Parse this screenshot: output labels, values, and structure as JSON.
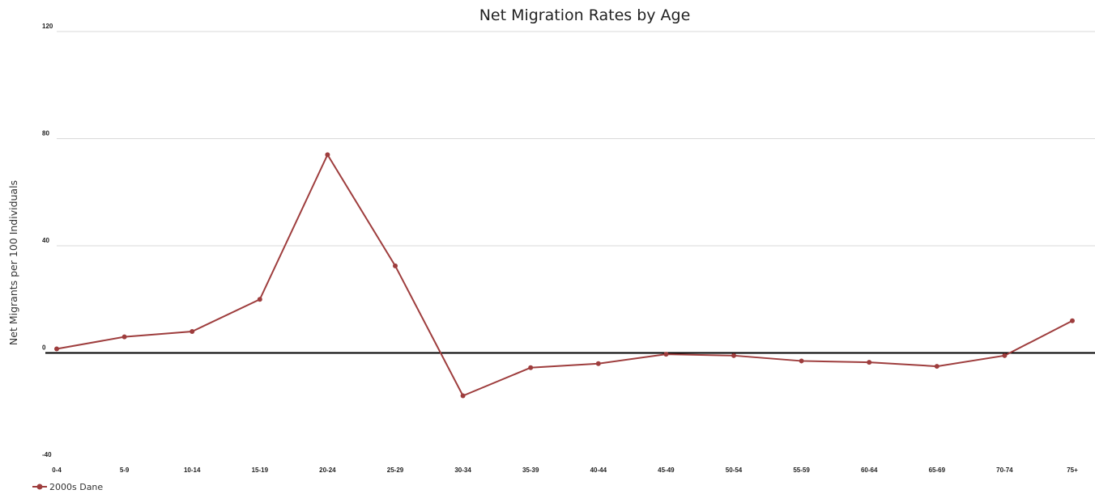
{
  "chart_data": {
    "type": "line",
    "title": "Net Migration Rates by Age",
    "ylabel": "Net Migrants per 100 Individuals",
    "xlabel": "",
    "ylim": [
      -40,
      120
    ],
    "yticks": [
      120,
      80,
      40,
      0,
      -40
    ],
    "grid": true,
    "legend_position": "bottom-left",
    "categories": [
      "0-4",
      "5-9",
      "10-14",
      "15-19",
      "20-24",
      "25-29",
      "30-34",
      "35-39",
      "40-44",
      "45-49",
      "50-54",
      "55-59",
      "60-64",
      "65-69",
      "70-74",
      "75+"
    ],
    "series": [
      {
        "name": "2000s Dane",
        "color": "#9e3d3d",
        "values": [
          1.5,
          6,
          8,
          20,
          74,
          32.5,
          -16,
          -5.5,
          -4,
          -0.5,
          -1,
          -3,
          -3.5,
          -5,
          -1,
          12
        ]
      }
    ]
  }
}
